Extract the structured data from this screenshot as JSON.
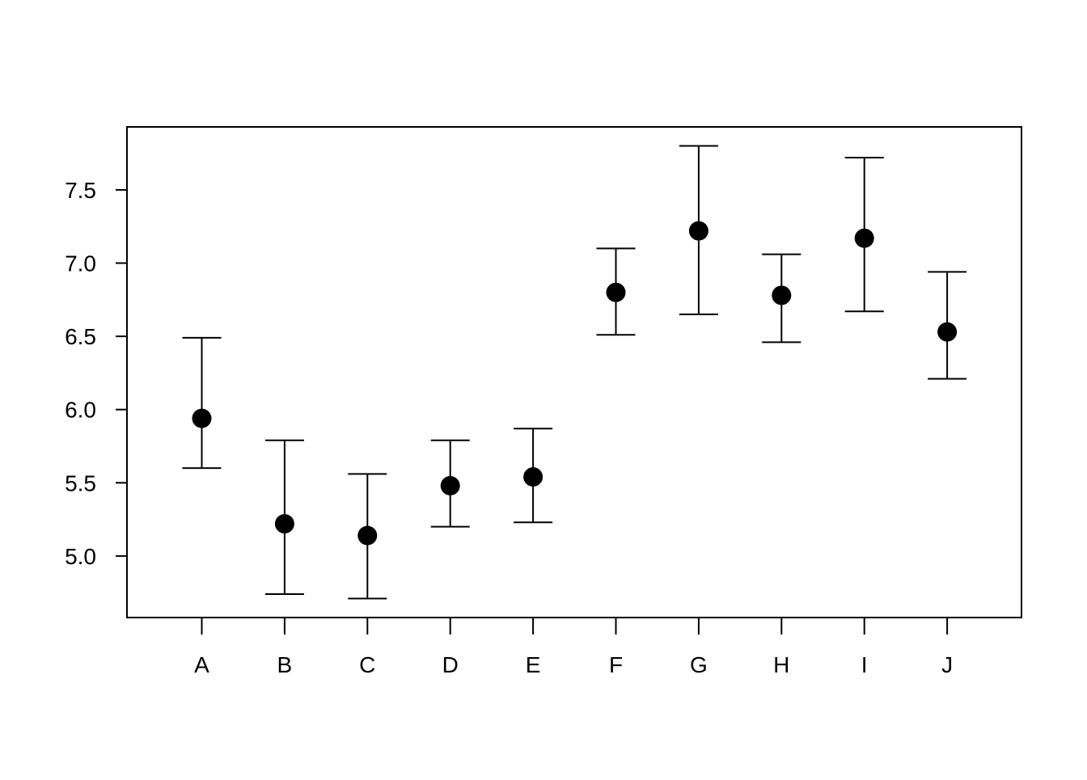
{
  "chart_data": {
    "type": "scatter",
    "subtype": "point-with-error-bars",
    "title": "",
    "xlabel": "",
    "ylabel": "",
    "categories": [
      "A",
      "B",
      "C",
      "D",
      "E",
      "F",
      "G",
      "H",
      "I",
      "J"
    ],
    "values": [
      5.94,
      5.22,
      5.14,
      5.48,
      5.54,
      6.8,
      7.22,
      6.78,
      7.17,
      6.53
    ],
    "lower": [
      5.6,
      4.74,
      4.71,
      5.2,
      5.23,
      6.51,
      6.65,
      6.46,
      6.67,
      6.21
    ],
    "upper": [
      6.49,
      5.79,
      5.56,
      5.79,
      5.87,
      7.1,
      7.8,
      7.06,
      7.72,
      6.94
    ],
    "yticks": [
      "5.0",
      "5.5",
      "6.0",
      "6.5",
      "7.0",
      "7.5"
    ],
    "ylim": [
      4.58,
      7.93
    ],
    "grid": false,
    "legend": "none",
    "colors": {
      "marker": "#000000",
      "line": "#000000",
      "background": "#ffffff"
    }
  }
}
